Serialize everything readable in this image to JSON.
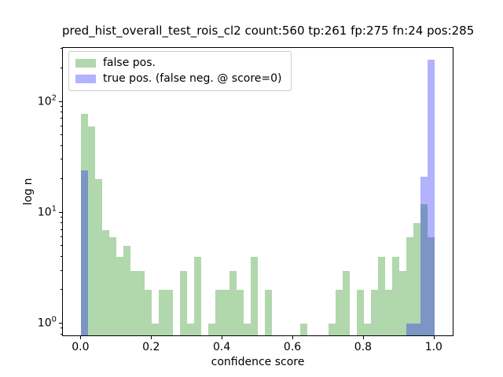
{
  "chart_data": {
    "type": "histogram",
    "title": "pred_hist_overall_test_rois_cl2 count:560 tp:261 fp:275 fn:24 pos:285",
    "xlabel": "confidence score",
    "ylabel": "log n",
    "xscale": "linear",
    "yscale": "log",
    "xlim": [
      -0.052,
      1.056
    ],
    "ylim": [
      0.758,
      306
    ],
    "xticks": [
      0.0,
      0.2,
      0.4,
      0.6,
      0.8,
      1.0
    ],
    "yticks": [
      1,
      10,
      100
    ],
    "grid": false,
    "legend_position": "upper left",
    "bin_start": 0.0,
    "bin_width": 0.02,
    "series": [
      {
        "name": "false pos.",
        "color": "#b1d7ad",
        "legend_color": "#b1d7ad",
        "values": [
          78,
          60,
          20,
          7,
          6,
          4,
          5,
          3,
          3,
          2,
          1,
          2,
          2,
          0,
          3,
          1,
          4,
          0,
          1,
          2,
          2,
          3,
          2,
          1,
          4,
          0,
          2,
          0,
          0,
          0,
          0,
          1,
          0,
          0,
          0,
          1,
          2,
          3,
          0,
          2,
          1,
          2,
          4,
          2,
          4,
          3,
          6,
          8,
          12,
          6
        ]
      },
      {
        "name": "true pos. (false neg. @ score=0)",
        "color": "rgba(0,0,255,0.30)",
        "legend_color": "#b2b2ff",
        "values": [
          24,
          0,
          0,
          0,
          0,
          0,
          0,
          0,
          0,
          0,
          0,
          0,
          0,
          0,
          0,
          0,
          0,
          0,
          0,
          0,
          0,
          0,
          0,
          0,
          0,
          0,
          0,
          0,
          0,
          0,
          0,
          0,
          0,
          0,
          0,
          0,
          0,
          0,
          0,
          0,
          0,
          0,
          0,
          0,
          0,
          0,
          1,
          1,
          21,
          238
        ]
      }
    ]
  }
}
